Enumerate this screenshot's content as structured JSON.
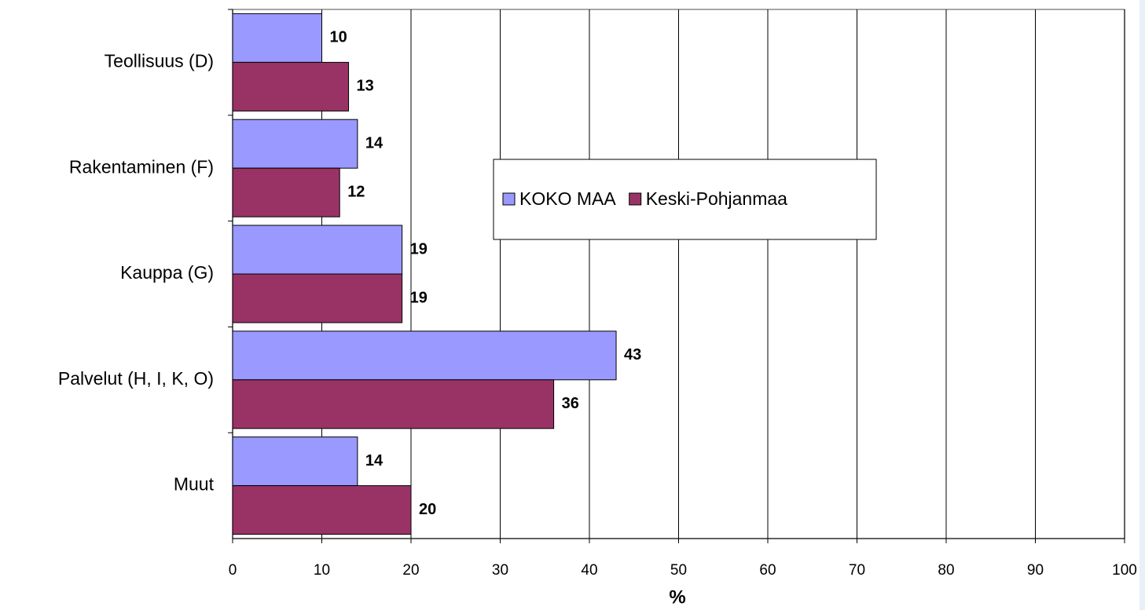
{
  "chart_data": {
    "type": "bar",
    "orientation": "horizontal",
    "categories": [
      "Teollisuus (D)",
      "Rakentaminen (F)",
      "Kauppa (G)",
      "Palvelut (H, I, K, O)",
      "Muut"
    ],
    "series": [
      {
        "name": "KOKO MAA",
        "color": "#9999ff",
        "values": [
          10,
          14,
          19,
          43,
          14
        ]
      },
      {
        "name": "Keski-Pohjanmaa",
        "color": "#993366",
        "values": [
          13,
          12,
          19,
          36,
          20
        ]
      }
    ],
    "xlim": [
      0,
      100
    ],
    "xticks": [
      0,
      10,
      20,
      30,
      40,
      50,
      60,
      70,
      80,
      90,
      100
    ],
    "xlabel": "%",
    "grid": true,
    "legend_position": "center",
    "data_labels": true
  }
}
